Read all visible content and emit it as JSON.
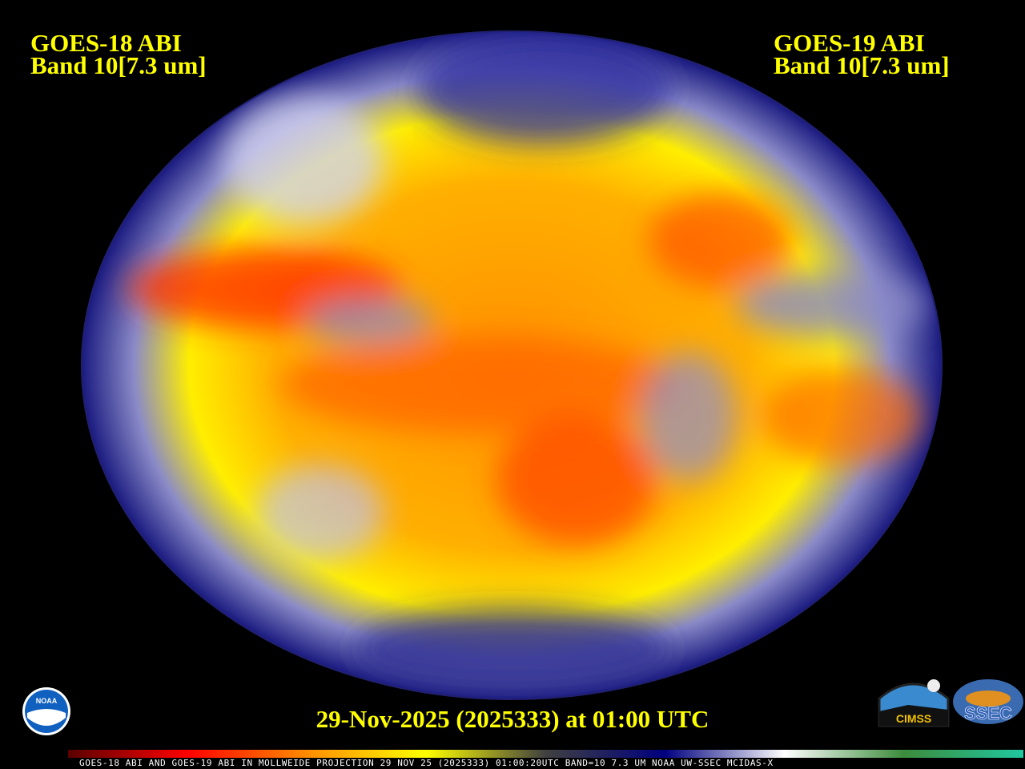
{
  "left_title": {
    "line1": "GOES-18 ABI",
    "line2": "Band 10[7.3 um]"
  },
  "right_title": {
    "line1": "GOES-19 ABI",
    "line2": "Band 10[7.3 um]"
  },
  "date_label": "29-Nov-2025 (2025333) at 01:00 UTC",
  "caption": "GOES-18 ABI AND GOES-19 ABI IN MOLLWEIDE PROJECTION 29 NOV 25 (2025333) 01:00:20UTC BAND=10 7.3 UM NOAA UW-SSEC MCIDAS-X",
  "projection": "Mollweide",
  "logos": {
    "noaa": "NOAA",
    "cimss": "CIMSS",
    "ssec": "SSEC"
  },
  "colorbar_colors": [
    "#5a0000",
    "#ff0000",
    "#ff8c00",
    "#ffff00",
    "#404040",
    "#000080",
    "#ffffff",
    "#3c8c3c",
    "#20c8a0"
  ],
  "colors": {
    "dry": "#ff3000",
    "mid": "#ffff00",
    "moist": "#1a1a8c",
    "cloud": "#ffffff",
    "cold": "#3c8c3c"
  }
}
